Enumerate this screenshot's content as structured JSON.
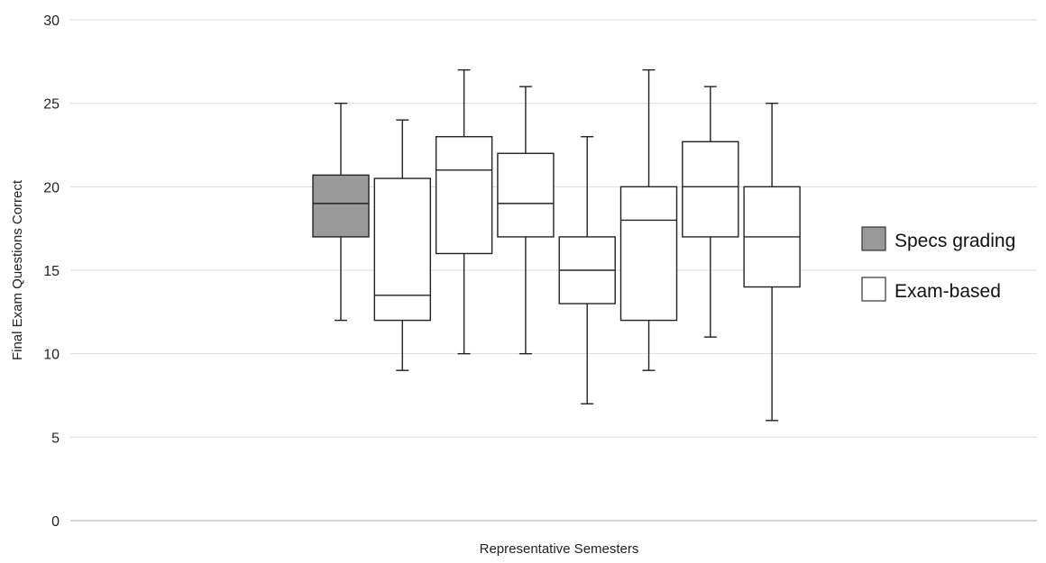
{
  "chart_data": {
    "type": "box",
    "xlabel": "Representative Semesters",
    "ylabel": "Final Exam Questions Correct",
    "ylim": [
      0,
      30
    ],
    "yticks": [
      0,
      5,
      10,
      15,
      20,
      25,
      30
    ],
    "grid": true,
    "legend": {
      "placement": "right",
      "entries": [
        {
          "label": "Specs grading",
          "color": "#999999"
        },
        {
          "label": "Exam-based",
          "color": "#ffffff"
        }
      ]
    },
    "boxes": [
      {
        "group": "Specs grading",
        "min": 12,
        "q1": 17,
        "median": 19,
        "q3": 20.7,
        "max": 25
      },
      {
        "group": "Exam-based",
        "min": 9,
        "q1": 12,
        "median": 13.5,
        "q3": 20.5,
        "max": 24
      },
      {
        "group": "Exam-based",
        "min": 10,
        "q1": 16,
        "median": 21,
        "q3": 23,
        "max": 27
      },
      {
        "group": "Exam-based",
        "min": 10,
        "q1": 17,
        "median": 19,
        "q3": 22,
        "max": 26
      },
      {
        "group": "Exam-based",
        "min": 7,
        "q1": 13,
        "median": 15,
        "q3": 17,
        "max": 23
      },
      {
        "group": "Exam-based",
        "min": 9,
        "q1": 12,
        "median": 18,
        "q3": 20,
        "max": 27
      },
      {
        "group": "Exam-based",
        "min": 11,
        "q1": 17,
        "median": 20,
        "q3": 22.7,
        "max": 26
      },
      {
        "group": "Exam-based",
        "min": 6,
        "q1": 14,
        "median": 17,
        "q3": 20,
        "max": 25
      }
    ]
  }
}
